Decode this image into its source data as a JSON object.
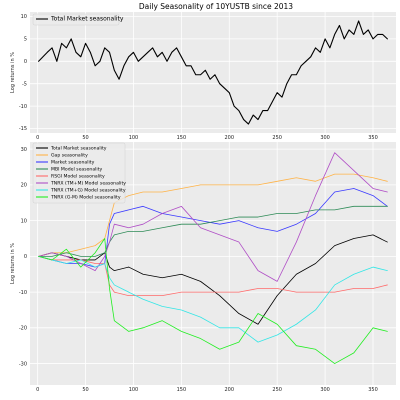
{
  "figure_title": "Daily Seasonality of 10YUSTB since 2013",
  "chart_data": [
    {
      "type": "line",
      "title": "",
      "xlabel": "",
      "ylabel": "Log returns in %",
      "xlim": [
        -8,
        374
      ],
      "ylim": [
        -16,
        11
      ],
      "x_ticks": [
        0,
        50,
        100,
        150,
        200,
        250,
        300,
        350
      ],
      "y_ticks": [
        -15,
        -10,
        -5,
        0,
        5,
        10
      ],
      "grid": true,
      "legend_position": "top-left",
      "series": [
        {
          "name": "Total Market seasonality",
          "color": "#000000",
          "x": [
            1,
            10,
            15,
            20,
            25,
            30,
            35,
            40,
            45,
            50,
            55,
            60,
            65,
            70,
            75,
            80,
            85,
            90,
            95,
            100,
            105,
            110,
            115,
            120,
            125,
            130,
            135,
            140,
            145,
            150,
            155,
            160,
            165,
            170,
            175,
            180,
            185,
            190,
            195,
            200,
            205,
            210,
            215,
            220,
            225,
            230,
            235,
            240,
            245,
            250,
            255,
            260,
            265,
            270,
            275,
            280,
            285,
            290,
            295,
            300,
            305,
            310,
            315,
            320,
            325,
            330,
            335,
            340,
            345,
            350,
            355,
            360,
            365
          ],
          "values": [
            0,
            2,
            3,
            0,
            4,
            3,
            5,
            2,
            1,
            4,
            2,
            -1,
            0,
            3,
            2,
            -2,
            -4,
            -1,
            1,
            2,
            0,
            1,
            2,
            3,
            1,
            2,
            0,
            2,
            3,
            1,
            -1,
            -1,
            -3,
            -3,
            -2,
            -4,
            -3,
            -5,
            -6,
            -7,
            -10,
            -11,
            -13,
            -14,
            -12,
            -13,
            -11,
            -11,
            -9,
            -7,
            -8,
            -5,
            -3,
            -3,
            -1,
            0,
            1,
            3,
            2,
            5,
            3,
            6,
            8,
            5,
            7,
            6,
            9,
            6,
            7,
            5,
            6,
            6,
            5
          ]
        }
      ]
    },
    {
      "type": "line",
      "title": "",
      "xlabel": "",
      "ylabel": "Log returns in %",
      "xlim": [
        -8,
        374
      ],
      "ylim": [
        -36,
        32
      ],
      "x_ticks": [
        0,
        50,
        100,
        150,
        200,
        250,
        300,
        350
      ],
      "y_ticks": [
        -30,
        -20,
        -10,
        0,
        10,
        20,
        30
      ],
      "grid": true,
      "legend_position": "top-left",
      "x": [
        1,
        15,
        30,
        45,
        60,
        70,
        75,
        80,
        95,
        110,
        130,
        150,
        170,
        190,
        210,
        230,
        250,
        270,
        290,
        310,
        330,
        350,
        365
      ],
      "series": [
        {
          "name": "Total Market seasonality",
          "color": "#000000",
          "values": [
            0,
            1,
            0,
            -1,
            -1,
            1,
            -3,
            -4,
            -3,
            -5,
            -6,
            -5,
            -7,
            -11,
            -16,
            -19,
            -11,
            -5,
            -2,
            3,
            5,
            6,
            4
          ]
        },
        {
          "name": "Gap seasonality",
          "color": "#ffb347",
          "values": [
            0,
            1,
            1,
            2,
            3,
            5,
            10,
            15,
            17,
            18,
            18,
            19,
            20,
            20,
            20,
            20,
            21,
            22,
            21,
            23,
            23,
            22,
            21
          ]
        },
        {
          "name": "Market seasonality",
          "color": "#3a3aff",
          "values": [
            0,
            -1,
            -2,
            -2,
            -3,
            -2,
            9,
            12,
            13,
            14,
            12,
            11,
            10,
            9,
            10,
            8,
            7,
            9,
            12,
            18,
            19,
            17,
            14
          ]
        },
        {
          "name": "MBI Model seasonality",
          "color": "#2e8b57",
          "values": [
            0,
            0,
            1,
            0,
            0,
            1,
            4,
            6,
            7,
            7,
            8,
            9,
            9,
            10,
            11,
            11,
            12,
            12,
            13,
            13,
            14,
            14,
            14
          ]
        },
        {
          "name": "RSGI Model seasonality",
          "color": "#ff6b6b",
          "values": [
            0,
            -1,
            -1,
            -1,
            -2,
            -2,
            -8,
            -10,
            -11,
            -11,
            -11,
            -10,
            -10,
            -10,
            -10,
            -9,
            -9,
            -10,
            -10,
            -10,
            -9,
            -9,
            -8
          ]
        },
        {
          "name": "TNRX (TM+M) Model seasonality",
          "color": "#b04fc6",
          "values": [
            0,
            1,
            0,
            -2,
            -4,
            0,
            4,
            9,
            8,
            9,
            12,
            14,
            8,
            6,
            4,
            -4,
            -7,
            4,
            17,
            29,
            24,
            19,
            18
          ]
        },
        {
          "name": "TNRX (TM+G) Model seasonality",
          "color": "#33e6e6",
          "values": [
            0,
            -1,
            -2,
            -1,
            -3,
            -2,
            -6,
            -8,
            -10,
            -12,
            -14,
            -15,
            -17,
            -20,
            -20,
            -24,
            -22,
            -19,
            -15,
            -8,
            -5,
            -3,
            -4
          ]
        },
        {
          "name": "TNRX (G-M) Model seasonality",
          "color": "#22ee22",
          "values": [
            0,
            -1,
            2,
            -3,
            1,
            5,
            -9,
            -18,
            -21,
            -20,
            -18,
            -21,
            -23,
            -26,
            -24,
            -16,
            -19,
            -25,
            -26,
            -30,
            -27,
            -20,
            -21
          ]
        }
      ]
    }
  ]
}
